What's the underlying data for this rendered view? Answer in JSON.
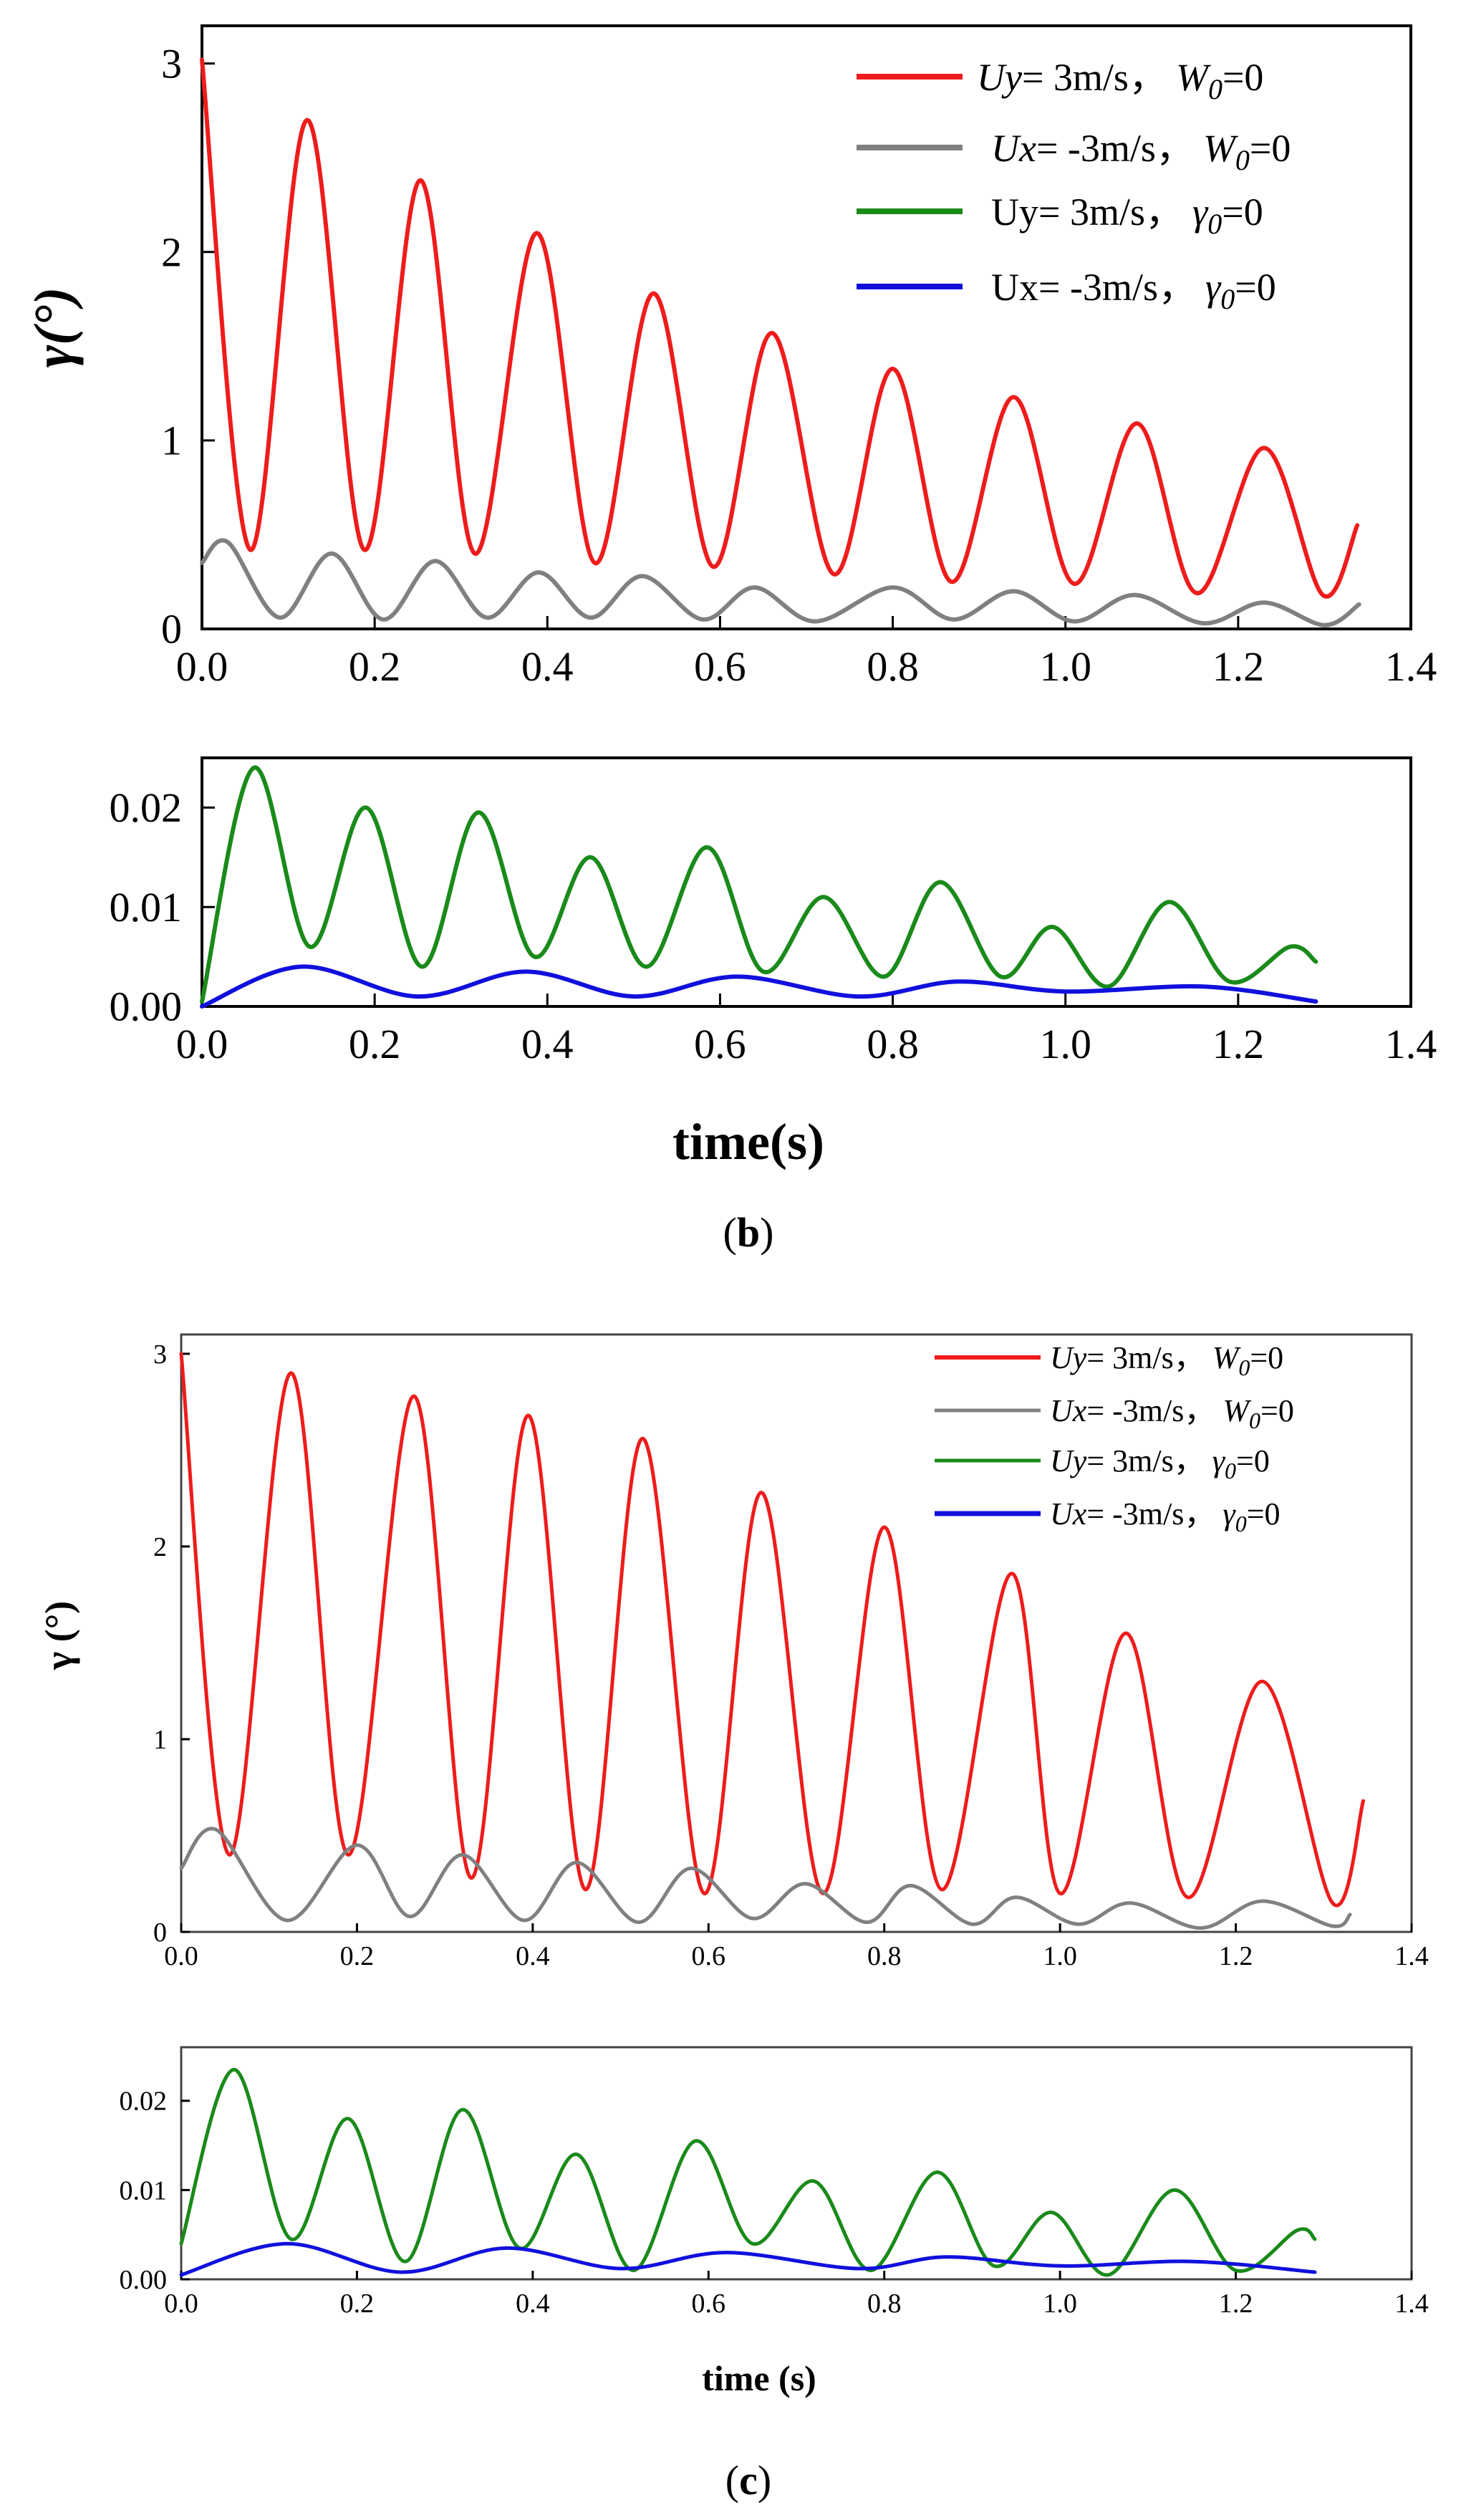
{
  "panel_b": {
    "caption_letter": "b",
    "caption_open": "(",
    "caption_close": ")",
    "xlabel": "time(s)",
    "top": {
      "ylabel": "γ(°)",
      "legend": [
        {
          "id": "s1",
          "sym": "Uy",
          "rest": "= 3m/s，",
          "cond": "W",
          "sub": "0",
          "eq": "=0"
        },
        {
          "id": "s2",
          "sym": "Ux",
          "rest": "= -3m/s，",
          "cond": "W",
          "sub": "0",
          "eq": "=0"
        },
        {
          "id": "s3",
          "sym": "Uy",
          "rest": "= 3m/s，",
          "cond": "γ",
          "sub": "0",
          "eq": "=0"
        },
        {
          "id": "s4",
          "sym": "Ux",
          "rest": "= -3m/s，",
          "cond": "γ",
          "sub": "0",
          "eq": "=0"
        }
      ]
    }
  },
  "panel_c": {
    "caption_letter": "c",
    "caption_open": "(",
    "caption_close": ")",
    "xlabel": "time (s)",
    "top": {
      "ylabel": "γ (°)",
      "legend": [
        {
          "id": "s1",
          "sym": "Uy",
          "rest": "= 3m/s，",
          "cond": "W",
          "sub": "0",
          "eq": "=0"
        },
        {
          "id": "s2",
          "sym": "Ux",
          "rest": "= -3m/s，",
          "cond": "W",
          "sub": "0",
          "eq": "=0"
        },
        {
          "id": "s3",
          "sym": "Uy",
          "rest": "= 3m/s，",
          "cond": "γ",
          "sub": "0",
          "eq": "=0"
        },
        {
          "id": "s4",
          "sym": "Ux",
          "rest": "= -3m/s，",
          "cond": "γ",
          "sub": "0",
          "eq": "=0"
        }
      ]
    }
  },
  "colors": {
    "red": "#ee1c1c",
    "gray": "#808080",
    "green": "#1a8a1a",
    "blue": "#1010dd"
  },
  "chart_data": [
    {
      "id": "b-top",
      "type": "line",
      "title": "",
      "xlabel": "",
      "ylabel": "γ(°)",
      "xlim": [
        0,
        1.4
      ],
      "ylim": [
        0,
        3.2
      ],
      "xticks": [
        "0.0",
        "0.2",
        "0.4",
        "0.6",
        "0.8",
        "1.0",
        "1.2",
        "1.4"
      ],
      "yticks": [
        "0",
        "1",
        "2",
        "3"
      ],
      "series": [
        {
          "name": "Uy= 3m/s，W0=0",
          "color": "red",
          "x": [
            0,
            0.056,
            0.122,
            0.188,
            0.253,
            0.316,
            0.388,
            0.455,
            0.523,
            0.592,
            0.66,
            0.732,
            0.8,
            0.868,
            0.94,
            1.01,
            1.083,
            1.152,
            1.23,
            1.298,
            1.338
          ],
          "values": [
            3.02,
            0.42,
            2.7,
            0.42,
            2.38,
            0.4,
            2.1,
            0.35,
            1.78,
            0.33,
            1.57,
            0.29,
            1.38,
            0.25,
            1.23,
            0.24,
            1.09,
            0.19,
            0.96,
            0.18,
            0.55
          ]
        },
        {
          "name": "Ux= -3m/s，W0=0",
          "color": "gray",
          "x": [
            0,
            0.03,
            0.09,
            0.15,
            0.21,
            0.27,
            0.33,
            0.39,
            0.45,
            0.51,
            0.58,
            0.64,
            0.71,
            0.8,
            0.87,
            0.94,
            1.01,
            1.08,
            1.16,
            1.23,
            1.3,
            1.34
          ],
          "values": [
            0.35,
            0.46,
            0.06,
            0.4,
            0.05,
            0.36,
            0.06,
            0.3,
            0.06,
            0.28,
            0.05,
            0.22,
            0.04,
            0.22,
            0.05,
            0.2,
            0.04,
            0.18,
            0.03,
            0.14,
            0.02,
            0.13
          ]
        }
      ]
    },
    {
      "id": "b-bottom",
      "type": "line",
      "title": "",
      "xlabel": "time(s)",
      "ylabel": "",
      "xlim": [
        0,
        1.4
      ],
      "ylim": [
        0,
        0.025
      ],
      "xticks": [
        "0.0",
        "0.2",
        "0.4",
        "0.6",
        "0.8",
        "1.0",
        "1.2",
        "1.4"
      ],
      "yticks": [
        "0.00",
        "0.01",
        "0.02"
      ],
      "series": [
        {
          "name": "Uy= 3m/s，γ0=0",
          "color": "green",
          "x": [
            0,
            0.06,
            0.125,
            0.19,
            0.255,
            0.32,
            0.385,
            0.45,
            0.515,
            0.585,
            0.65,
            0.72,
            0.79,
            0.855,
            0.925,
            0.985,
            1.05,
            1.12,
            1.19,
            1.26,
            1.29
          ],
          "values": [
            0.0005,
            0.024,
            0.006,
            0.02,
            0.004,
            0.0195,
            0.005,
            0.015,
            0.004,
            0.016,
            0.0035,
            0.011,
            0.003,
            0.0125,
            0.003,
            0.008,
            0.002,
            0.0105,
            0.0025,
            0.006,
            0.0045
          ]
        },
        {
          "name": "Ux= -3m/s，γ0=0",
          "color": "blue",
          "x": [
            0,
            0.115,
            0.25,
            0.375,
            0.5,
            0.62,
            0.76,
            0.875,
            1.0,
            1.16,
            1.29
          ],
          "values": [
            0.0,
            0.004,
            0.001,
            0.0035,
            0.001,
            0.003,
            0.001,
            0.0025,
            0.0015,
            0.002,
            0.0005
          ]
        }
      ]
    },
    {
      "id": "c-top",
      "type": "line",
      "title": "",
      "xlabel": "",
      "ylabel": "γ (°)",
      "xlim": [
        0,
        1.4
      ],
      "ylim": [
        0,
        3.1
      ],
      "xticks": [
        "0.0",
        "0.2",
        "0.4",
        "0.6",
        "0.8",
        "1.0",
        "1.2",
        "1.4"
      ],
      "yticks": [
        "0",
        "1",
        "2",
        "3"
      ],
      "series": [
        {
          "name": "Uy= 3m/s，W0=0",
          "color": "red",
          "x": [
            0,
            0.055,
            0.125,
            0.19,
            0.265,
            0.33,
            0.395,
            0.46,
            0.525,
            0.595,
            0.66,
            0.73,
            0.8,
            0.865,
            0.945,
            1.0,
            1.075,
            1.145,
            1.23,
            1.31,
            1.345
          ],
          "values": [
            3.0,
            0.4,
            2.9,
            0.4,
            2.78,
            0.28,
            2.68,
            0.22,
            2.56,
            0.2,
            2.28,
            0.2,
            2.1,
            0.22,
            1.86,
            0.2,
            1.55,
            0.18,
            1.3,
            0.15,
            0.68
          ]
        },
        {
          "name": "Ux= -3m/s，W0=0",
          "color": "gray",
          "x": [
            0,
            0.04,
            0.12,
            0.2,
            0.26,
            0.32,
            0.39,
            0.45,
            0.52,
            0.58,
            0.65,
            0.71,
            0.78,
            0.83,
            0.9,
            0.95,
            1.02,
            1.08,
            1.16,
            1.23,
            1.31,
            1.33
          ],
          "values": [
            0.33,
            0.53,
            0.06,
            0.45,
            0.08,
            0.4,
            0.06,
            0.36,
            0.05,
            0.33,
            0.07,
            0.25,
            0.05,
            0.24,
            0.04,
            0.18,
            0.04,
            0.15,
            0.02,
            0.16,
            0.03,
            0.09
          ]
        }
      ]
    },
    {
      "id": "c-bottom",
      "type": "line",
      "title": "",
      "xlabel": "time (s)",
      "ylabel": "",
      "xlim": [
        0,
        1.4
      ],
      "ylim": [
        0,
        0.026
      ],
      "xticks": [
        "0.0",
        "0.2",
        "0.4",
        "0.6",
        "0.8",
        "1.0",
        "1.2",
        "1.4"
      ],
      "yticks": [
        "0.00",
        "0.01",
        "0.02"
      ],
      "series": [
        {
          "name": "Uy= 3m/s，γ0=0",
          "color": "green",
          "x": [
            0,
            0.06,
            0.125,
            0.19,
            0.255,
            0.32,
            0.385,
            0.45,
            0.515,
            0.585,
            0.65,
            0.72,
            0.785,
            0.86,
            0.925,
            0.99,
            1.055,
            1.13,
            1.2,
            1.27,
            1.29
          ],
          "values": [
            0.004,
            0.0235,
            0.0045,
            0.018,
            0.002,
            0.019,
            0.0035,
            0.014,
            0.001,
            0.0155,
            0.004,
            0.011,
            0.001,
            0.012,
            0.0015,
            0.0075,
            0.0005,
            0.01,
            0.001,
            0.0055,
            0.0045
          ]
        },
        {
          "name": "Ux= -3m/s，γ0=0",
          "color": "blue",
          "x": [
            0,
            0.12,
            0.25,
            0.37,
            0.5,
            0.62,
            0.77,
            0.87,
            1.0,
            1.15,
            1.29
          ],
          "values": [
            0.0005,
            0.004,
            0.0008,
            0.0035,
            0.0012,
            0.003,
            0.0012,
            0.0025,
            0.0015,
            0.002,
            0.0008
          ]
        }
      ]
    }
  ]
}
